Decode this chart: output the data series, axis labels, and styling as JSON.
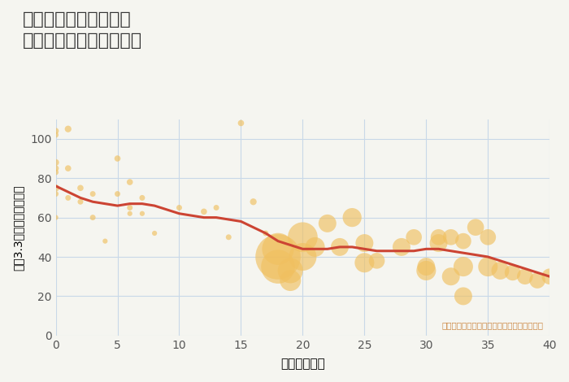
{
  "title": "千葉県柏市大津ヶ丘の\n築年数別中古戸建て価格",
  "xlabel": "築年数（年）",
  "ylabel": "坪（3.3㎡）単価（万円）",
  "annotation": "円の大きさは、取引のあった物件面積を示す",
  "background_color": "#f5f5f0",
  "plot_bg_color": "#f5f5f0",
  "grid_color": "#c8d8e8",
  "bubble_color": "#f0c060",
  "bubble_alpha": 0.65,
  "line_color": "#cc4433",
  "line_width": 2.2,
  "xlim": [
    0,
    40
  ],
  "ylim": [
    0,
    110
  ],
  "xticks": [
    0,
    5,
    10,
    15,
    20,
    25,
    30,
    35,
    40
  ],
  "yticks": [
    0,
    20,
    40,
    60,
    80,
    100
  ],
  "scatter_x": [
    0,
    0,
    0,
    0,
    0,
    0,
    0,
    0,
    1,
    1,
    1,
    2,
    2,
    3,
    3,
    4,
    5,
    5,
    6,
    6,
    6,
    7,
    7,
    8,
    10,
    12,
    13,
    14,
    15,
    16,
    17,
    18,
    18,
    18,
    19,
    19,
    20,
    20,
    21,
    22,
    23,
    24,
    25,
    25,
    26,
    28,
    29,
    30,
    30,
    31,
    31,
    32,
    32,
    33,
    33,
    33,
    34,
    35,
    35,
    36,
    37,
    38,
    39,
    40
  ],
  "scatter_y": [
    104,
    102,
    88,
    85,
    83,
    75,
    72,
    60,
    105,
    85,
    70,
    75,
    68,
    72,
    60,
    48,
    90,
    72,
    78,
    65,
    62,
    70,
    62,
    52,
    65,
    63,
    65,
    50,
    108,
    68,
    52,
    44,
    40,
    35,
    33,
    28,
    50,
    40,
    45,
    57,
    45,
    60,
    47,
    37,
    38,
    45,
    50,
    35,
    33,
    50,
    47,
    50,
    30,
    48,
    35,
    20,
    55,
    50,
    35,
    33,
    32,
    30,
    28,
    30
  ],
  "scatter_size": [
    30,
    25,
    35,
    30,
    25,
    40,
    25,
    20,
    35,
    30,
    25,
    30,
    25,
    25,
    25,
    20,
    30,
    25,
    30,
    25,
    20,
    25,
    20,
    20,
    25,
    30,
    25,
    25,
    30,
    35,
    25,
    800,
    1600,
    900,
    500,
    350,
    700,
    600,
    300,
    250,
    250,
    280,
    250,
    300,
    200,
    250,
    200,
    250,
    300,
    200,
    250,
    200,
    250,
    200,
    300,
    250,
    220,
    200,
    300,
    250,
    200,
    200,
    200,
    200
  ],
  "trend_x": [
    0,
    1,
    2,
    3,
    4,
    5,
    6,
    7,
    8,
    9,
    10,
    11,
    12,
    13,
    14,
    15,
    16,
    17,
    18,
    19,
    20,
    21,
    22,
    23,
    24,
    25,
    26,
    27,
    28,
    29,
    30,
    31,
    32,
    33,
    34,
    35,
    36,
    37,
    38,
    39,
    40
  ],
  "trend_y": [
    76,
    73,
    70,
    68,
    67,
    66,
    67,
    67,
    66,
    64,
    62,
    61,
    60,
    60,
    59,
    58,
    55,
    52,
    48,
    46,
    44,
    44,
    44,
    45,
    45,
    44,
    43,
    43,
    43,
    43,
    44,
    44,
    43,
    42,
    41,
    40,
    38,
    36,
    34,
    32,
    30
  ]
}
